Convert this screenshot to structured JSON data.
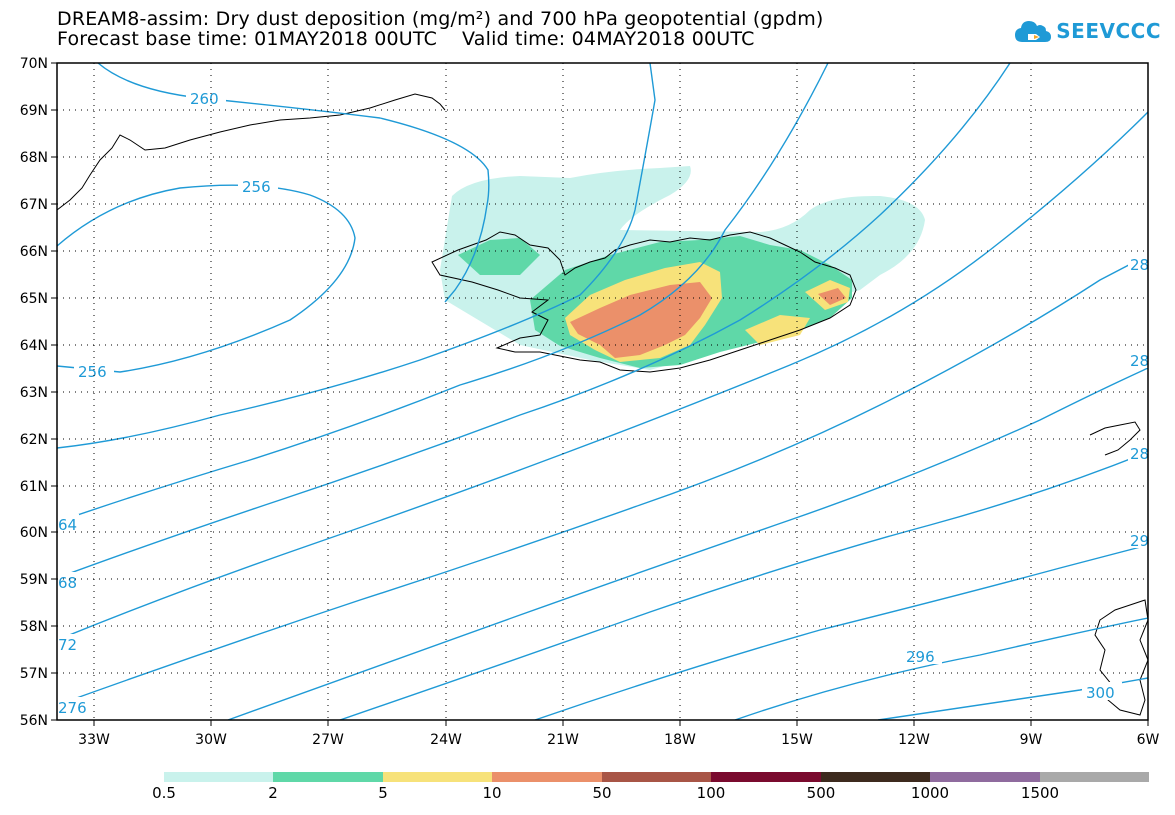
{
  "title": {
    "line1": "DREAM8-assim: Dry dust deposition (mg/m²) and 700 hPa geopotential (gpdm)",
    "line2": "Forecast base time: 01MAY2018 00UTC    Valid time: 04MAY2018 00UTC"
  },
  "logo": {
    "text": "SEEVCCC",
    "icon": "cloud-icon"
  },
  "map": {
    "lat_labels": [
      "70N",
      "69N",
      "68N",
      "67N",
      "66N",
      "65N",
      "64N",
      "63N",
      "62N",
      "61N",
      "60N",
      "59N",
      "58N",
      "57N",
      "56N"
    ],
    "lon_labels": [
      "33W",
      "30W",
      "27W",
      "24W",
      "21W",
      "18W",
      "15W",
      "12W",
      "9W",
      "6W"
    ],
    "contour_labels": [
      "260",
      "256",
      "256",
      "64",
      "68",
      "72",
      "276",
      "28",
      "28",
      "28",
      "29",
      "296",
      "300"
    ],
    "region": "Iceland",
    "contour_color": "#1f9ad6"
  },
  "colorbar": {
    "labels": [
      "0.5",
      "2",
      "5",
      "10",
      "50",
      "100",
      "500",
      "1000",
      "1500"
    ],
    "colors": [
      "#c9f2ec",
      "#5fd8a8",
      "#f7e27a",
      "#eb906a",
      "#a85546",
      "#7a0a2e",
      "#3d2a1e",
      "#8f6b9e",
      "#a9a9a9"
    ]
  }
}
